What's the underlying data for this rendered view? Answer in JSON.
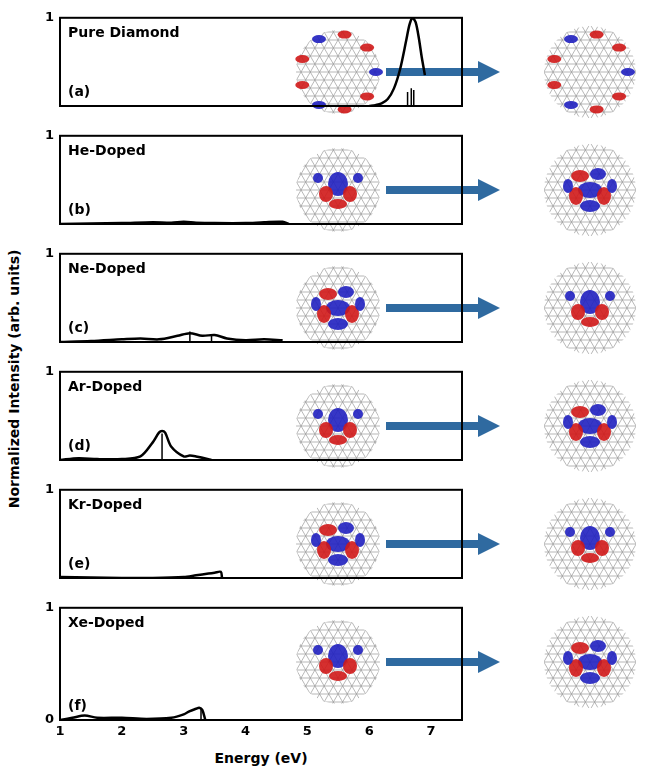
{
  "chart_data": {
    "type": "line",
    "x_label": "Energy (eV)",
    "y_label": "Normalized Intensity (arb. units)",
    "xlim": [
      1,
      7.5
    ],
    "xticks": [
      1,
      2,
      3,
      4,
      5,
      6,
      7
    ],
    "grid": false,
    "legend": false,
    "panels": [
      {
        "title": "Pure Diamond",
        "panel_label": "(a)",
        "ylim": [
          0,
          1
        ],
        "yticks": [
          1
        ],
        "series": [
          {
            "type": "line",
            "color": "#000000",
            "x": [
              6.0,
              6.1,
              6.2,
              6.3,
              6.4,
              6.5,
              6.6,
              6.65,
              6.7,
              6.75,
              6.8,
              6.85,
              6.9
            ],
            "values": [
              0,
              0.01,
              0.03,
              0.08,
              0.2,
              0.42,
              0.75,
              0.92,
              1.0,
              0.95,
              0.78,
              0.55,
              0.35
            ]
          },
          {
            "type": "stick",
            "color": "#000000",
            "x": [
              6.62,
              6.68,
              6.72
            ],
            "values": [
              0.16,
              0.2,
              0.18
            ]
          }
        ]
      },
      {
        "title": "He-Doped",
        "panel_label": "(b)",
        "ylim": [
          0,
          1
        ],
        "yticks": [
          1
        ],
        "series": [
          {
            "type": "line",
            "color": "#000000",
            "x": [
              1,
              1.5,
              2,
              2.5,
              2.8,
              3,
              3.2,
              3.5,
              4,
              4.3,
              4.6,
              4.7
            ],
            "values": [
              0,
              0.005,
              0.01,
              0.02,
              0.015,
              0.025,
              0.015,
              0.01,
              0.01,
              0.02,
              0.025,
              0
            ]
          }
        ]
      },
      {
        "title": "Ne-Doped",
        "panel_label": "(c)",
        "ylim": [
          0,
          1
        ],
        "yticks": [
          1
        ],
        "series": [
          {
            "type": "line",
            "color": "#000000",
            "x": [
              1,
              1.5,
              2,
              2.3,
              2.6,
              2.9,
              3.1,
              3.3,
              3.5,
              3.7,
              4,
              4.3,
              4.6
            ],
            "values": [
              0,
              0.01,
              0.03,
              0.04,
              0.03,
              0.07,
              0.1,
              0.07,
              0.08,
              0.04,
              0.02,
              0.03,
              0.02
            ]
          },
          {
            "type": "stick",
            "color": "#000000",
            "x": [
              3.1,
              3.45
            ],
            "values": [
              0.12,
              0.08
            ]
          }
        ]
      },
      {
        "title": "Ar-Doped",
        "panel_label": "(d)",
        "ylim": [
          0,
          1
        ],
        "yticks": [
          1
        ],
        "series": [
          {
            "type": "line",
            "color": "#000000",
            "x": [
              1,
              1.3,
              1.6,
              2,
              2.3,
              2.5,
              2.6,
              2.65,
              2.7,
              2.8,
              3,
              3.1,
              3.2,
              3.4,
              3.45
            ],
            "values": [
              0,
              0.02,
              0.01,
              0.01,
              0.04,
              0.2,
              0.31,
              0.33,
              0.31,
              0.15,
              0.04,
              0.05,
              0.04,
              0.01,
              0
            ]
          },
          {
            "type": "stick",
            "color": "#000000",
            "x": [
              2.65
            ],
            "values": [
              0.3
            ]
          }
        ]
      },
      {
        "title": "Kr-Doped",
        "panel_label": "(e)",
        "ylim": [
          0,
          1
        ],
        "yticks": [
          1
        ],
        "series": [
          {
            "type": "line",
            "color": "#000000",
            "x": [
              1,
              1.5,
              2,
              2.5,
              3,
              3.2,
              3.4,
              3.5,
              3.6,
              3.62
            ],
            "values": [
              0.01,
              0.005,
              0,
              0,
              0.01,
              0.03,
              0.05,
              0.06,
              0.07,
              0
            ]
          }
        ]
      },
      {
        "title": "Xe-Doped",
        "panel_label": "(f)",
        "ylim": [
          0,
          1
        ],
        "yticks": [
          0,
          1
        ],
        "series": [
          {
            "type": "line",
            "color": "#000000",
            "x": [
              1,
              1.2,
              1.4,
              1.6,
              2,
              2.4,
              2.8,
              3,
              3.1,
              3.2,
              3.25,
              3.3,
              3.35
            ],
            "values": [
              0,
              0.02,
              0.04,
              0.02,
              0.02,
              0.01,
              0.02,
              0.05,
              0.08,
              0.1,
              0.11,
              0.09,
              0
            ]
          },
          {
            "type": "stick",
            "color": "#000000",
            "x": [
              3.28
            ],
            "values": [
              0.1
            ]
          }
        ]
      }
    ]
  }
}
